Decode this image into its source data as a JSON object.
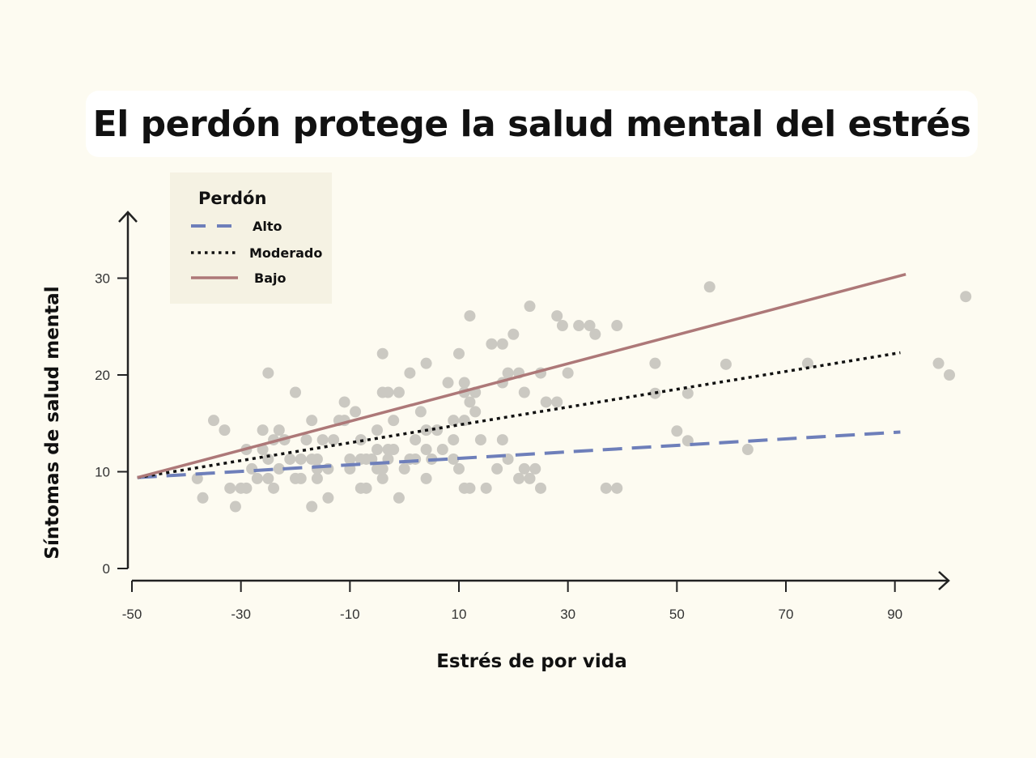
{
  "title": "El perdón protege la salud mental del estrés",
  "colors": {
    "background": "#fdfbf1",
    "legend_bg": "#f5f2e3",
    "points": "#cbc9c2",
    "alto": "#6e7fba",
    "moderado": "#111111",
    "bajo": "#ad7878",
    "axis": "#222222"
  },
  "chart_data": {
    "type": "scatter",
    "title": "El perdón protege la salud mental del estrés",
    "xlabel": "Estrés de por vida",
    "ylabel": "Síntomas de salud mental",
    "xlim": [
      -50,
      100
    ],
    "ylim": [
      0,
      35
    ],
    "x_ticks": [
      -50,
      -30,
      -10,
      10,
      30,
      50,
      70,
      90
    ],
    "y_ticks": [
      0,
      10,
      20,
      30
    ],
    "x_tick_labels": [
      "-50",
      "-30",
      "-10",
      "10",
      "30",
      "50",
      "70",
      "90"
    ],
    "y_tick_labels": [
      "0",
      "10",
      "20",
      "30"
    ],
    "legend": {
      "title": "Perdón",
      "placement": "top-left",
      "entries": [
        {
          "label": "Alto",
          "style": "dashed",
          "color": "#6e7fba"
        },
        {
          "label": "Moderado",
          "style": "dotted",
          "color": "#111111"
        },
        {
          "label": "Bajo",
          "style": "solid",
          "color": "#ad7878"
        }
      ]
    },
    "series": [
      {
        "name": "Alto",
        "style": "dashed",
        "x": [
          -49,
          91
        ],
        "y": [
          9.4,
          14.1
        ]
      },
      {
        "name": "Moderado",
        "style": "dotted",
        "x": [
          -49,
          91
        ],
        "y": [
          9.4,
          22.3
        ]
      },
      {
        "name": "Bajo",
        "style": "solid",
        "x": [
          -49,
          92
        ],
        "y": [
          9.4,
          30.4
        ]
      }
    ],
    "points": [
      [
        -38,
        9.3
      ],
      [
        -37,
        7.3
      ],
      [
        -35,
        15.3
      ],
      [
        -33,
        14.3
      ],
      [
        -32,
        8.3
      ],
      [
        -31,
        6.4
      ],
      [
        -30,
        8.3
      ],
      [
        -29,
        12.3
      ],
      [
        -29,
        8.3
      ],
      [
        -28,
        10.3
      ],
      [
        -27,
        9.3
      ],
      [
        -26,
        12.3
      ],
      [
        -26,
        14.3
      ],
      [
        -25,
        20.2
      ],
      [
        -25,
        9.3
      ],
      [
        -25,
        11.3
      ],
      [
        -24,
        13.3
      ],
      [
        -24,
        8.3
      ],
      [
        -23,
        14.3
      ],
      [
        -23,
        10.3
      ],
      [
        -22,
        13.3
      ],
      [
        -21,
        11.3
      ],
      [
        -20,
        9.3
      ],
      [
        -20,
        18.2
      ],
      [
        -19,
        11.3
      ],
      [
        -19,
        9.3
      ],
      [
        -18,
        13.3
      ],
      [
        -17,
        6.4
      ],
      [
        -17,
        15.3
      ],
      [
        -16,
        10.3
      ],
      [
        -17,
        11.3
      ],
      [
        -16,
        11.3
      ],
      [
        -16,
        9.3
      ],
      [
        -15,
        13.3
      ],
      [
        -14,
        10.3
      ],
      [
        -14,
        7.3
      ],
      [
        -13,
        13.3
      ],
      [
        -12,
        15.3
      ],
      [
        -11,
        17.2
      ],
      [
        -11,
        15.3
      ],
      [
        -10,
        11.3
      ],
      [
        -10,
        10.3
      ],
      [
        -9,
        16.2
      ],
      [
        -8,
        11.3
      ],
      [
        -8,
        8.3
      ],
      [
        -8,
        13.3
      ],
      [
        -7,
        8.3
      ],
      [
        -7,
        11.3
      ],
      [
        -6,
        11.3
      ],
      [
        -5,
        10.3
      ],
      [
        -5,
        12.3
      ],
      [
        -5,
        14.3
      ],
      [
        -4,
        9.3
      ],
      [
        -4,
        22.2
      ],
      [
        -4,
        10.3
      ],
      [
        -4,
        18.2
      ],
      [
        -3,
        11.3
      ],
      [
        -3,
        12.3
      ],
      [
        -3,
        18.2
      ],
      [
        -2,
        12.3
      ],
      [
        -2,
        15.3
      ],
      [
        -1,
        7.3
      ],
      [
        -1,
        18.2
      ],
      [
        0,
        10.3
      ],
      [
        1,
        20.2
      ],
      [
        1,
        11.3
      ],
      [
        2,
        13.3
      ],
      [
        2,
        11.3
      ],
      [
        3,
        16.2
      ],
      [
        4,
        14.3
      ],
      [
        4,
        21.2
      ],
      [
        4,
        9.3
      ],
      [
        4,
        12.3
      ],
      [
        5,
        11.3
      ],
      [
        6,
        14.3
      ],
      [
        7,
        12.3
      ],
      [
        8,
        19.2
      ],
      [
        9,
        11.3
      ],
      [
        9,
        13.3
      ],
      [
        9,
        15.3
      ],
      [
        10,
        10.3
      ],
      [
        10,
        22.2
      ],
      [
        11,
        19.2
      ],
      [
        11,
        18.2
      ],
      [
        11,
        15.3
      ],
      [
        11,
        8.3
      ],
      [
        12,
        26.1
      ],
      [
        12,
        8.3
      ],
      [
        12,
        17.2
      ],
      [
        13,
        16.2
      ],
      [
        13,
        18.2
      ],
      [
        14,
        13.3
      ],
      [
        15,
        8.3
      ],
      [
        16,
        23.2
      ],
      [
        17,
        10.3
      ],
      [
        18,
        19.2
      ],
      [
        18,
        23.2
      ],
      [
        18,
        13.3
      ],
      [
        19,
        20.2
      ],
      [
        19,
        11.3
      ],
      [
        20,
        24.2
      ],
      [
        21,
        9.3
      ],
      [
        21,
        20.2
      ],
      [
        22,
        18.2
      ],
      [
        22,
        10.3
      ],
      [
        23,
        27.1
      ],
      [
        23,
        9.3
      ],
      [
        24,
        10.3
      ],
      [
        25,
        8.3
      ],
      [
        25,
        20.2
      ],
      [
        26,
        17.2
      ],
      [
        28,
        26.1
      ],
      [
        28,
        17.2
      ],
      [
        29,
        25.1
      ],
      [
        30,
        20.2
      ],
      [
        32,
        25.1
      ],
      [
        34,
        25.1
      ],
      [
        35,
        24.2
      ],
      [
        37,
        8.3
      ],
      [
        39,
        8.3
      ],
      [
        39,
        25.1
      ],
      [
        46,
        21.2
      ],
      [
        46,
        18.1
      ],
      [
        50,
        14.2
      ],
      [
        52,
        18.1
      ],
      [
        52,
        13.2
      ],
      [
        56,
        29.1
      ],
      [
        59,
        21.1
      ],
      [
        63,
        12.3
      ],
      [
        74,
        21.2
      ],
      [
        98,
        21.2
      ],
      [
        100,
        20.0
      ],
      [
        103,
        28.1
      ]
    ]
  }
}
